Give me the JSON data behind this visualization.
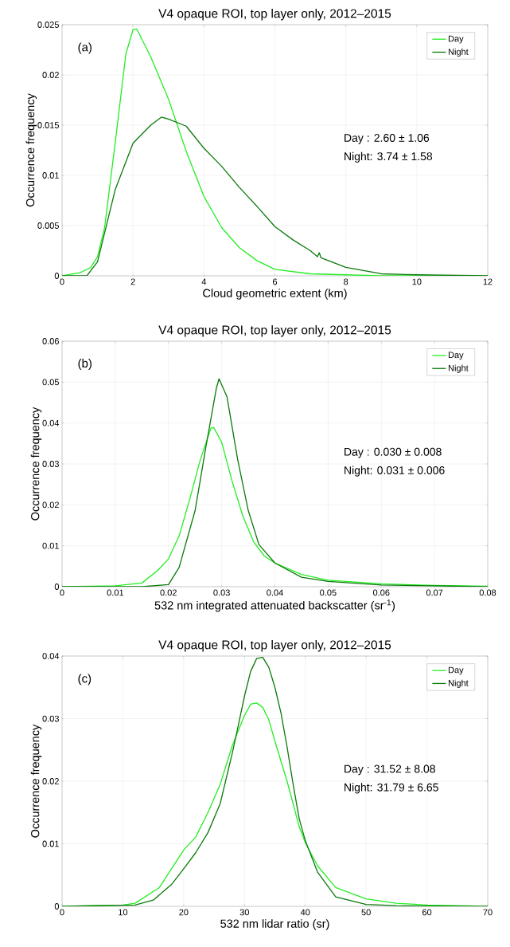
{
  "chart_data": [
    {
      "type": "line",
      "title": "V4 opaque ROI, top layer only, 2012–2015",
      "xlabel": "Cloud geometric extent (km)",
      "ylabel": "Occurrence frequency",
      "annotations": [
        "(a)",
        "Day   : 2.60 ± 1.06",
        "Night: 3.74 ± 1.58"
      ],
      "xlim": [
        0,
        12
      ],
      "ylim": [
        0,
        0.025
      ],
      "xticks": [
        0,
        2,
        4,
        6,
        8,
        10,
        12
      ],
      "yticks": [
        0,
        0.005,
        0.01,
        0.015,
        0.02,
        0.025
      ],
      "grid": true,
      "legend": "top right",
      "series": [
        {
          "name": "Day",
          "color": "#22ee22",
          "x": [
            0,
            0.5,
            0.8,
            1.0,
            1.2,
            1.5,
            1.8,
            2.0,
            2.1,
            2.5,
            3.0,
            3.5,
            4.0,
            4.5,
            5.0,
            5.5,
            6.0,
            7.0,
            8.0,
            9.0,
            12.0
          ],
          "values": [
            0,
            0.0003,
            0.0008,
            0.0019,
            0.0048,
            0.0133,
            0.0221,
            0.0245,
            0.0246,
            0.0218,
            0.0176,
            0.0124,
            0.0079,
            0.0048,
            0.0028,
            0.0015,
            0.00065,
            0.0002,
            0.0001,
            0,
            0
          ]
        },
        {
          "name": "Night",
          "color": "#0a7a0a",
          "x": [
            0,
            0.7,
            1.0,
            1.5,
            2.0,
            2.5,
            2.8,
            3.0,
            3.5,
            4.0,
            4.5,
            5.0,
            5.5,
            6.0,
            6.5,
            7.0,
            7.2,
            7.25,
            7.3,
            8.0,
            9.0,
            10.0,
            12.0
          ],
          "values": [
            0,
            0,
            0.0014,
            0.0086,
            0.0132,
            0.015,
            0.0158,
            0.0156,
            0.0149,
            0.0127,
            0.0109,
            0.0088,
            0.0069,
            0.0049,
            0.0036,
            0.0025,
            0.0019,
            0.0023,
            0.0018,
            0.00085,
            0.0002,
            0.0001,
            0
          ]
        }
      ]
    },
    {
      "type": "line",
      "title": "V4 opaque ROI, top layer only, 2012–2015",
      "xlabel": "532 nm integrated attenuated backscatter (sr$^{-1}$)",
      "ylabel": "Occurrence frequency",
      "annotations": [
        "(b)",
        "Day   : 0.030 ± 0.008",
        "Night: 0.031 ± 0.006"
      ],
      "xlim": [
        0,
        0.08
      ],
      "ylim": [
        0,
        0.06
      ],
      "xticks": [
        0,
        0.01,
        0.02,
        0.03,
        0.04,
        0.05,
        0.06,
        0.07,
        0.08
      ],
      "yticks": [
        0,
        0.01,
        0.02,
        0.03,
        0.04,
        0.05,
        0.06
      ],
      "grid": true,
      "legend": "top right",
      "series": [
        {
          "name": "Day",
          "color": "#22ee22",
          "x": [
            0,
            0.01,
            0.015,
            0.018,
            0.02,
            0.022,
            0.024,
            0.026,
            0.028,
            0.0285,
            0.03,
            0.032,
            0.034,
            0.036,
            0.038,
            0.04,
            0.045,
            0.05,
            0.06,
            0.07,
            0.08
          ],
          "values": [
            0,
            0.0002,
            0.0009,
            0.004,
            0.0068,
            0.0124,
            0.0214,
            0.0311,
            0.0388,
            0.0389,
            0.0353,
            0.0256,
            0.0172,
            0.011,
            0.0075,
            0.0058,
            0.003,
            0.0016,
            0.0007,
            0.0003,
            0.0001
          ]
        },
        {
          "name": "Night",
          "color": "#0a7a0a",
          "x": [
            0,
            0.015,
            0.02,
            0.022,
            0.025,
            0.027,
            0.029,
            0.0295,
            0.031,
            0.033,
            0.035,
            0.037,
            0.04,
            0.045,
            0.05,
            0.06,
            0.08
          ],
          "values": [
            0,
            0,
            0.0005,
            0.0047,
            0.0186,
            0.0339,
            0.0485,
            0.0508,
            0.0464,
            0.0311,
            0.0186,
            0.0103,
            0.0058,
            0.0023,
            0.0013,
            0.0004,
            0
          ]
        }
      ]
    },
    {
      "type": "line",
      "title": "V4 opaque ROI, top layer only, 2012–2015",
      "xlabel": "532 nm lidar ratio (sr)",
      "ylabel": "Occurrence frequency",
      "annotations": [
        "(c)",
        "Day   : 31.52 ± 8.08",
        "Night: 31.79 ± 6.65"
      ],
      "xlim": [
        0,
        70
      ],
      "ylim": [
        0,
        0.04
      ],
      "xticks": [
        0,
        10,
        20,
        30,
        40,
        50,
        60,
        70
      ],
      "yticks": [
        0,
        0.01,
        0.02,
        0.03,
        0.04
      ],
      "grid": true,
      "legend": "top right",
      "series": [
        {
          "name": "Day",
          "color": "#22ee22",
          "x": [
            0,
            10,
            12,
            16,
            20,
            22,
            24,
            26,
            28,
            30,
            31,
            32,
            33,
            34,
            35,
            37,
            38,
            39,
            40,
            42,
            45,
            50,
            55,
            60,
            70
          ],
          "values": [
            0,
            0.0002,
            0.0005,
            0.003,
            0.009,
            0.0111,
            0.015,
            0.0195,
            0.0257,
            0.0305,
            0.0323,
            0.0325,
            0.0318,
            0.0298,
            0.0264,
            0.02,
            0.0164,
            0.0127,
            0.0102,
            0.0065,
            0.003,
            0.0012,
            0.0005,
            0.0002,
            0
          ]
        },
        {
          "name": "Night",
          "color": "#0a7a0a",
          "x": [
            0,
            12,
            15,
            18,
            20,
            22,
            24,
            26,
            28,
            29,
            30,
            31,
            32,
            33,
            34,
            35,
            36,
            37,
            38,
            39,
            40,
            42,
            45,
            50,
            55,
            70
          ],
          "values": [
            0,
            0.0002,
            0.001,
            0.0035,
            0.006,
            0.0086,
            0.0118,
            0.0164,
            0.0245,
            0.029,
            0.0336,
            0.0375,
            0.0396,
            0.0398,
            0.0382,
            0.035,
            0.0309,
            0.0255,
            0.0195,
            0.014,
            0.0105,
            0.0055,
            0.0015,
            0.0003,
            0.0001,
            0
          ]
        }
      ]
    }
  ]
}
